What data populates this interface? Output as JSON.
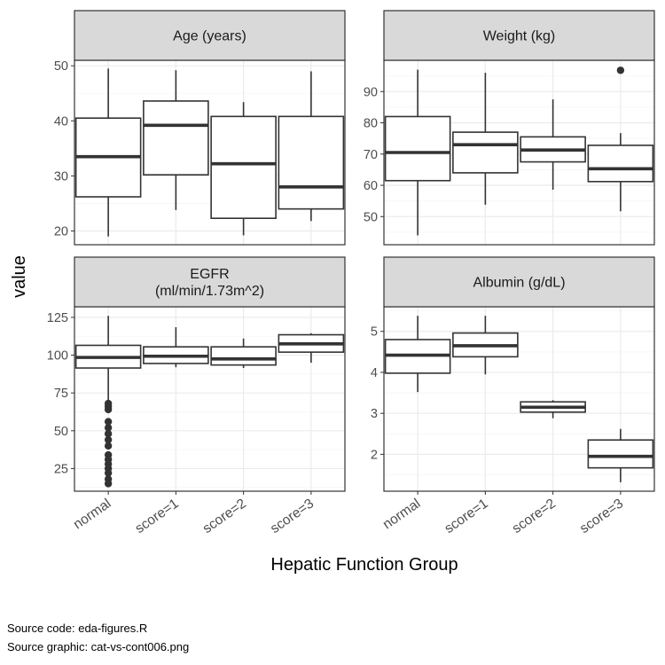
{
  "figure": {
    "y_axis_title": "value",
    "x_axis_title": "Hepatic Function Group",
    "caption_lines": [
      "Source code: eda-figures.R",
      "Source graphic: cat-vs-cont006.png"
    ]
  },
  "colors": {
    "strip_fill": "#d9d9d9",
    "panel_border": "#333333",
    "grid_major": "#ebebeb",
    "grid_minor": "#f5f5f5",
    "box_line": "#333333",
    "tick_text": "#4d4d4d"
  },
  "chart_data": [
    {
      "type": "boxplot",
      "title": "Age (years)",
      "categories": [
        "normal",
        "score=1",
        "score=2",
        "score=3"
      ],
      "ylim": [
        17.5,
        51
      ],
      "yticks": [
        20,
        30,
        40,
        50
      ],
      "grid": true,
      "boxes": [
        {
          "category": "normal",
          "whisker_low": 19,
          "q1": 26.2,
          "median": 33.5,
          "q3": 40.5,
          "whisker_high": 49.5,
          "outliers": []
        },
        {
          "category": "score=1",
          "whisker_low": 23.8,
          "q1": 30.2,
          "median": 39.2,
          "q3": 43.6,
          "whisker_high": 49.2,
          "outliers": []
        },
        {
          "category": "score=2",
          "whisker_low": 19.2,
          "q1": 22.3,
          "median": 32.2,
          "q3": 40.8,
          "whisker_high": 43.4,
          "outliers": []
        },
        {
          "category": "score=3",
          "whisker_low": 21.8,
          "q1": 24.0,
          "median": 28.0,
          "q3": 40.8,
          "whisker_high": 49.0,
          "outliers": []
        }
      ]
    },
    {
      "type": "boxplot",
      "title": "Weight (kg)",
      "categories": [
        "normal",
        "score=1",
        "score=2",
        "score=3"
      ],
      "ylim": [
        41,
        100
      ],
      "yticks": [
        50,
        60,
        70,
        80,
        90
      ],
      "grid": true,
      "boxes": [
        {
          "category": "normal",
          "whisker_low": 44.0,
          "q1": 61.5,
          "median": 70.5,
          "q3": 82.0,
          "whisker_high": 97.0,
          "outliers": []
        },
        {
          "category": "score=1",
          "whisker_low": 53.8,
          "q1": 64.0,
          "median": 73.0,
          "q3": 77.0,
          "whisker_high": 96.0,
          "outliers": []
        },
        {
          "category": "score=2",
          "whisker_low": 58.6,
          "q1": 67.5,
          "median": 71.3,
          "q3": 75.5,
          "whisker_high": 87.5,
          "outliers": []
        },
        {
          "category": "score=3",
          "whisker_low": 51.7,
          "q1": 61.2,
          "median": 65.3,
          "q3": 72.8,
          "whisker_high": 76.7,
          "outliers": [
            96.8
          ]
        }
      ]
    },
    {
      "type": "boxplot",
      "title": "EGFR\n(ml/min/1.73m^2)",
      "categories": [
        "normal",
        "score=1",
        "score=2",
        "score=3"
      ],
      "ylim": [
        10,
        132
      ],
      "yticks": [
        25,
        50,
        75,
        100,
        125
      ],
      "grid": true,
      "boxes": [
        {
          "category": "normal",
          "whisker_low": 69,
          "q1": 91.5,
          "median": 98.5,
          "q3": 106.5,
          "whisker_high": 126,
          "outliers": [
            15,
            18,
            22,
            25,
            28,
            31,
            34,
            40,
            44,
            48,
            52,
            56,
            64,
            66,
            68
          ]
        },
        {
          "category": "score=1",
          "whisker_low": 92,
          "q1": 94.5,
          "median": 99.3,
          "q3": 105.5,
          "whisker_high": 118.5,
          "outliers": []
        },
        {
          "category": "score=2",
          "whisker_low": 91.5,
          "q1": 93.5,
          "median": 97.5,
          "q3": 105.5,
          "whisker_high": 111,
          "outliers": []
        },
        {
          "category": "score=3",
          "whisker_low": 95,
          "q1": 102,
          "median": 107.5,
          "q3": 113.5,
          "whisker_high": 114.5,
          "outliers": []
        }
      ]
    },
    {
      "type": "boxplot",
      "title": "Albumin (g/dL)",
      "categories": [
        "normal",
        "score=1",
        "score=2",
        "score=3"
      ],
      "ylim": [
        1.1,
        5.6
      ],
      "yticks": [
        2,
        3,
        4,
        5
      ],
      "grid": true,
      "boxes": [
        {
          "category": "normal",
          "whisker_low": 3.52,
          "q1": 3.98,
          "median": 4.42,
          "q3": 4.8,
          "whisker_high": 5.38,
          "outliers": []
        },
        {
          "category": "score=1",
          "whisker_low": 3.95,
          "q1": 4.38,
          "median": 4.65,
          "q3": 4.96,
          "whisker_high": 5.38,
          "outliers": []
        },
        {
          "category": "score=2",
          "whisker_low": 2.88,
          "q1": 3.03,
          "median": 3.15,
          "q3": 3.28,
          "whisker_high": 3.32,
          "outliers": []
        },
        {
          "category": "score=3",
          "whisker_low": 1.32,
          "q1": 1.67,
          "median": 1.95,
          "q3": 2.35,
          "whisker_high": 2.62,
          "outliers": []
        }
      ]
    }
  ]
}
